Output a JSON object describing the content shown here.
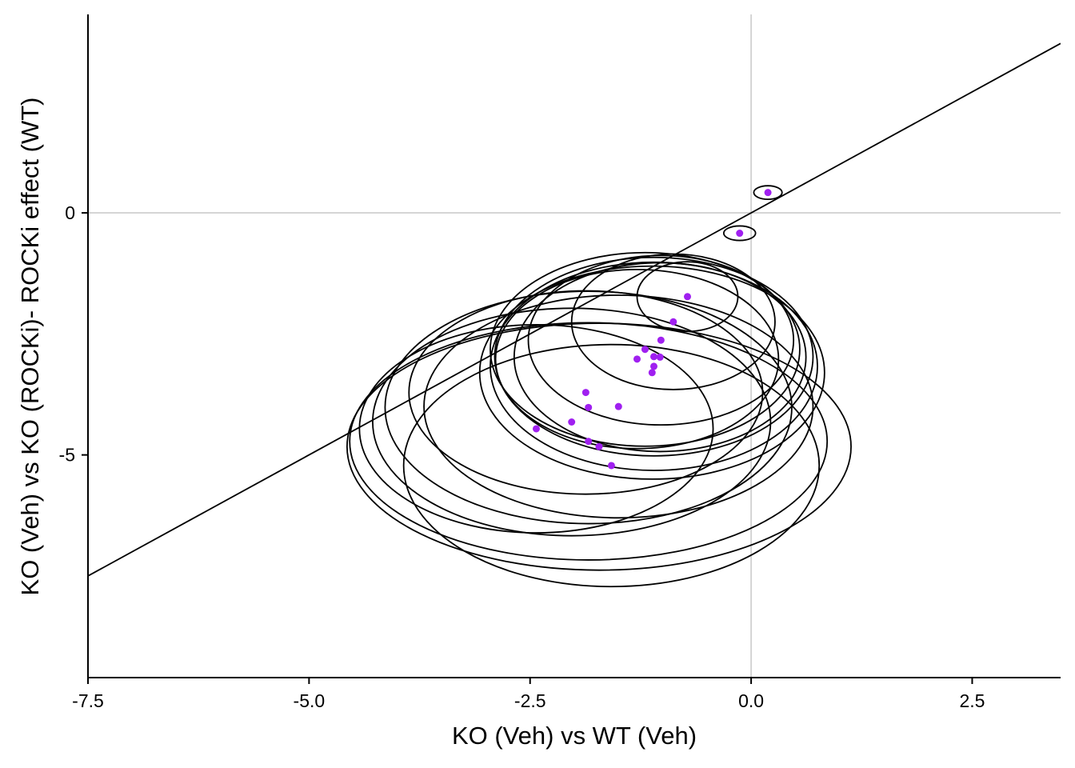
{
  "chart_data": {
    "type": "scatter",
    "xlabel": "KO (Veh) vs WT (Veh)",
    "ylabel": "KO (Veh) vs KO (ROCKi)- ROCKi effect (WT)",
    "xlim": [
      -7.5,
      3.5
    ],
    "ylim": [
      -9.6,
      4.1
    ],
    "x_ticks": [
      -7.5,
      -5.0,
      -2.5,
      0.0,
      2.5
    ],
    "x_tick_labels": [
      "-7.5",
      "-5.0",
      "-2.5",
      "0.0",
      "2.5"
    ],
    "y_ticks": [
      0,
      -5
    ],
    "y_tick_labels": [
      "0",
      "-5"
    ],
    "grid": false,
    "reference_lines": {
      "x": 0,
      "y": 0,
      "color": "#cccccc"
    },
    "diagonal_line": {
      "from": [
        -7.5,
        -7.5
      ],
      "to": [
        3.5,
        3.5
      ]
    },
    "point_color": "#a020f0",
    "points": [
      {
        "x": 0.19,
        "y": 0.42
      },
      {
        "x": -0.13,
        "y": -0.42
      },
      {
        "x": -0.72,
        "y": -1.73
      },
      {
        "x": -0.88,
        "y": -2.25
      },
      {
        "x": -1.02,
        "y": -2.63
      },
      {
        "x": -1.03,
        "y": -2.98
      },
      {
        "x": -1.1,
        "y": -2.97
      },
      {
        "x": -1.1,
        "y": -3.17
      },
      {
        "x": -1.12,
        "y": -3.3
      },
      {
        "x": -1.2,
        "y": -2.82
      },
      {
        "x": -1.29,
        "y": -3.02
      },
      {
        "x": -1.5,
        "y": -4.0
      },
      {
        "x": -1.87,
        "y": -3.71
      },
      {
        "x": -1.84,
        "y": -4.02
      },
      {
        "x": -2.03,
        "y": -4.32
      },
      {
        "x": -2.43,
        "y": -4.46
      },
      {
        "x": -1.84,
        "y": -4.72
      },
      {
        "x": -1.72,
        "y": -4.83
      },
      {
        "x": -1.58,
        "y": -5.22
      }
    ],
    "ellipses": [
      {
        "cx": 0.19,
        "cy": 0.42,
        "rx": 0.16,
        "ry": 0.14
      },
      {
        "cx": -0.13,
        "cy": -0.42,
        "rx": 0.18,
        "ry": 0.15
      },
      {
        "cx": -0.72,
        "cy": -1.73,
        "rx": 0.57,
        "ry": 0.72
      },
      {
        "cx": -0.88,
        "cy": -2.25,
        "rx": 1.15,
        "ry": 1.4
      },
      {
        "cx": -1.02,
        "cy": -2.63,
        "rx": 1.5,
        "ry": 1.75
      },
      {
        "cx": -1.03,
        "cy": -2.98,
        "rx": 1.65,
        "ry": 1.95
      },
      {
        "cx": -1.1,
        "cy": -2.97,
        "rx": 1.8,
        "ry": 2.05
      },
      {
        "cx": -1.1,
        "cy": -3.17,
        "rx": 1.85,
        "ry": 2.15
      },
      {
        "cx": -1.12,
        "cy": -3.3,
        "rx": 1.95,
        "ry": 2.2
      },
      {
        "cx": -1.2,
        "cy": -2.82,
        "rx": 1.75,
        "ry": 2.0
      },
      {
        "cx": -1.29,
        "cy": -3.02,
        "rx": 1.6,
        "ry": 1.85
      },
      {
        "cx": -1.5,
        "cy": -4.0,
        "rx": 2.2,
        "ry": 2.3
      },
      {
        "cx": -1.87,
        "cy": -3.71,
        "rx": 2.0,
        "ry": 2.1
      },
      {
        "cx": -1.84,
        "cy": -4.02,
        "rx": 2.3,
        "ry": 2.4
      },
      {
        "cx": -2.03,
        "cy": -4.32,
        "rx": 2.25,
        "ry": 2.35
      },
      {
        "cx": -2.43,
        "cy": -4.46,
        "rx": 2.0,
        "ry": 2.15
      },
      {
        "cx": -1.84,
        "cy": -4.72,
        "rx": 2.7,
        "ry": 2.45
      },
      {
        "cx": -1.72,
        "cy": -4.83,
        "rx": 2.85,
        "ry": 2.55
      },
      {
        "cx": -1.58,
        "cy": -5.22,
        "rx": 2.35,
        "ry": 2.5
      }
    ]
  }
}
